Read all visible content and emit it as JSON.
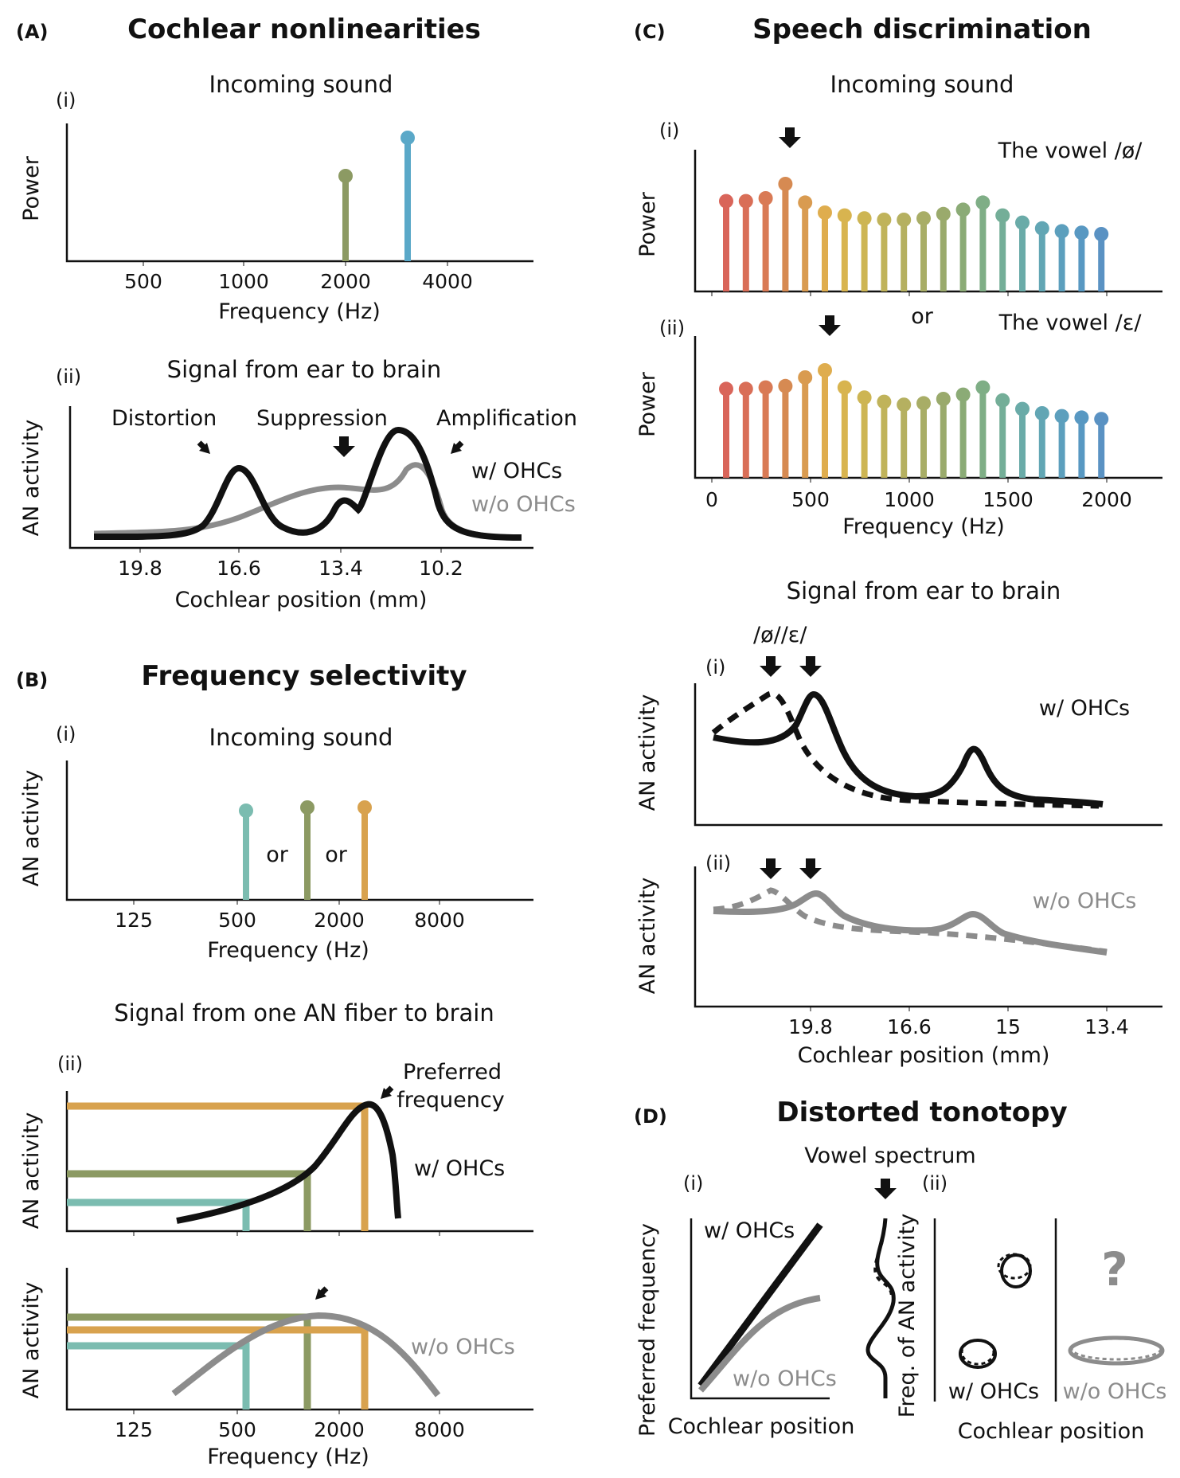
{
  "colors": {
    "black": "#111111",
    "gray": "#8c8c8c",
    "green": "#8c9a63",
    "blue": "#5aa8c8",
    "teal": "#7bbcb0",
    "orange": "#d8a24e",
    "spectrum": [
      "#d9655a",
      "#d96e57",
      "#d97a55",
      "#d68a52",
      "#d99b50",
      "#dfad4e",
      "#d8b44f",
      "#cdb553",
      "#c0b35a",
      "#b5b060",
      "#a8ad66",
      "#9aaa6c",
      "#8bab76",
      "#7fae86",
      "#74ae98",
      "#6aaba8",
      "#62a6b4",
      "#5c9fbd",
      "#5898c2",
      "#5a92c3"
    ]
  },
  "icons": [
    "down-arrow-icon",
    "diagonal-arrow-icon",
    "question-mark-icon"
  ],
  "panelA": {
    "letter": "(A)",
    "title": "Cochlear nonlinearities",
    "i": {
      "roman": "(i)",
      "subtitle": "Incoming sound",
      "ylabel": "Power",
      "xlabel": "Frequency (Hz)",
      "xticks": [
        "500",
        "1000",
        "2000",
        "4000"
      ]
    },
    "ii": {
      "roman": "(ii)",
      "subtitle": "Signal from ear to brain",
      "ylabel": "AN activity",
      "xlabel": "Cochlear position (mm)",
      "xticks": [
        "19.8",
        "16.6",
        "13.4",
        "10.2"
      ],
      "annotations": [
        "Distortion",
        "Suppression",
        "Amplification"
      ],
      "legend": [
        "w/ OHCs",
        "w/o OHCs"
      ]
    }
  },
  "panelB": {
    "letter": "(B)",
    "title": "Frequency selectivity",
    "i": {
      "roman": "(i)",
      "subtitle": "Incoming sound",
      "ylabel": "AN activity",
      "xlabel": "Frequency (Hz)",
      "xticks": [
        "125",
        "500",
        "2000",
        "8000"
      ],
      "or_labels": [
        "or",
        "or"
      ]
    },
    "ii": {
      "roman": "(ii)",
      "subtitle": "Signal from one AN fiber to brain",
      "ylabel": "AN activity",
      "preferred": [
        "Preferred",
        "frequency"
      ],
      "label_with": "w/ OHCs",
      "label_without": "w/o OHCs",
      "xlabel": "Frequency (Hz)",
      "xticks": [
        "125",
        "500",
        "2000",
        "8000"
      ]
    }
  },
  "panelC": {
    "letter": "(C)",
    "title": "Speech discrimination",
    "subtitle_sound": "Incoming sound",
    "i_roman": "(i)",
    "ii_roman": "(ii)",
    "vowel1": "The vowel /ø/",
    "vowel2": "The vowel /ɛ/",
    "or_label": "or",
    "ylabel_power": "Power",
    "spec_xlabel": "Frequency (Hz)",
    "spec_xticks": [
      "0",
      "500",
      "1000",
      "1500",
      "2000"
    ],
    "subtitle_signal": "Signal from ear to brain",
    "vowel_marks": "/ø//ɛ/",
    "sig_i_roman": "(i)",
    "sig_ii_roman": "(ii)",
    "ylabel_an": "AN activity",
    "label_with": "w/ OHCs",
    "label_without": "w/o OHCs",
    "sig_xlabel": "Cochlear position (mm)",
    "sig_xticks": [
      "19.8",
      "16.6",
      "15",
      "13.4"
    ]
  },
  "panelD": {
    "letter": "(D)",
    "title": "Distorted tonotopy",
    "vowel_spectrum": "Vowel spectrum",
    "i_roman": "(i)",
    "ii_roman": "(ii)",
    "ylabel_i": "Preferred frequency",
    "ylabel_ii": "Freq. of AN activity",
    "label_with": "w/ OHCs",
    "label_without": "w/o OHCs",
    "xlabel_i": "Cochlear position",
    "xlabel_ii": "Cochlear position",
    "question": "?"
  }
}
